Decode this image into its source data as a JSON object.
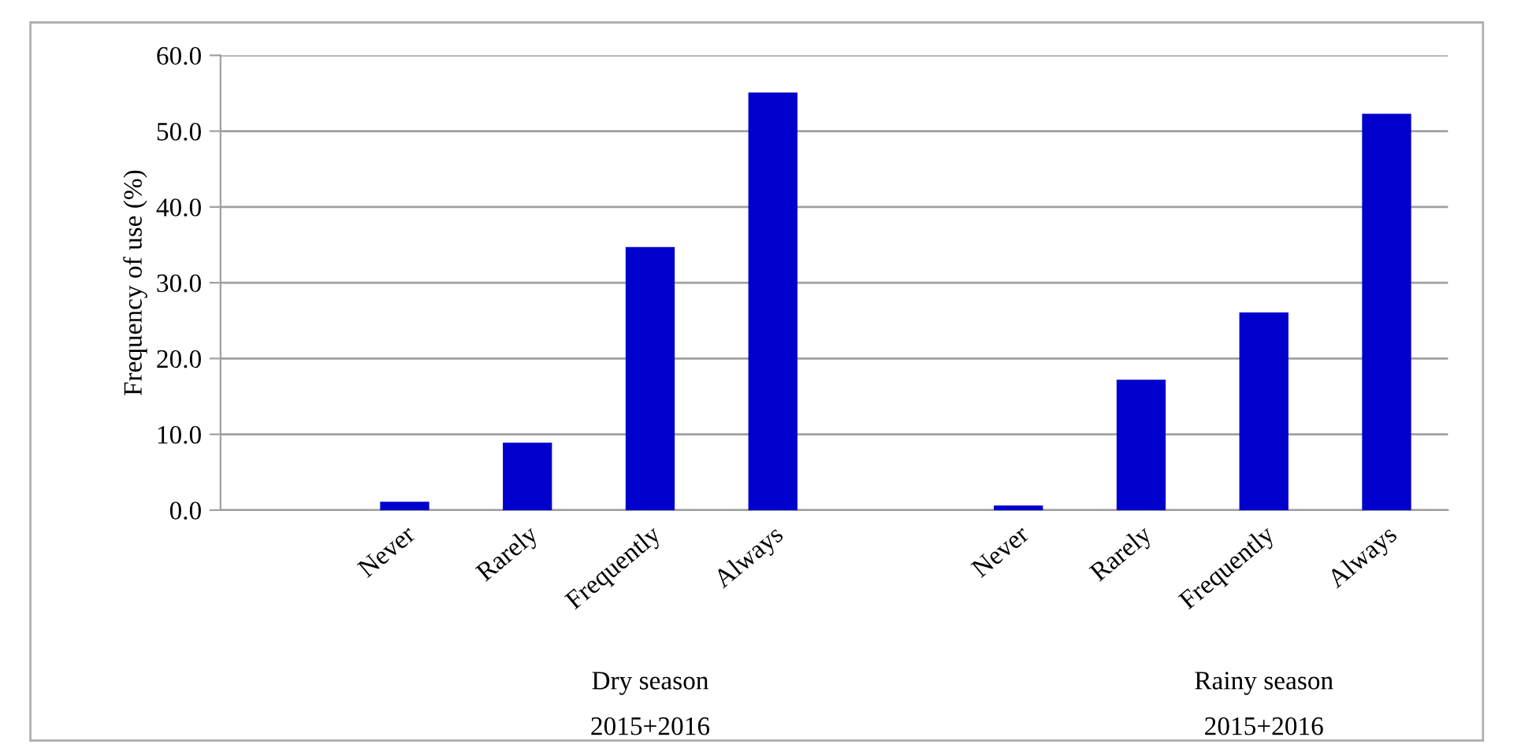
{
  "chart_data": {
    "type": "bar",
    "ylabel": "Frequency of use (%)",
    "categories": [
      null,
      "Never",
      "Rarely",
      "Frequently",
      "Always",
      null,
      "Never",
      "Rarely",
      "Frequently",
      "Always"
    ],
    "values": [
      null,
      1.1,
      8.9,
      34.7,
      55.1,
      null,
      0.6,
      17.2,
      26.1,
      52.3
    ],
    "color": "#0000cc",
    "ylim": [
      0,
      60
    ],
    "yticks": [
      {
        "value": 0,
        "label": "0.0"
      },
      {
        "value": 10,
        "label": "10.0"
      },
      {
        "value": 20,
        "label": "20.0"
      },
      {
        "value": 30,
        "label": "30.0"
      },
      {
        "value": 40,
        "label": "40.0"
      },
      {
        "value": 50,
        "label": "50.0"
      },
      {
        "value": 60,
        "label": "60.0"
      }
    ],
    "grid": "y",
    "annotations": [
      "Dry season",
      "2015+2016",
      "Rainy season",
      "2015+2016"
    ]
  }
}
